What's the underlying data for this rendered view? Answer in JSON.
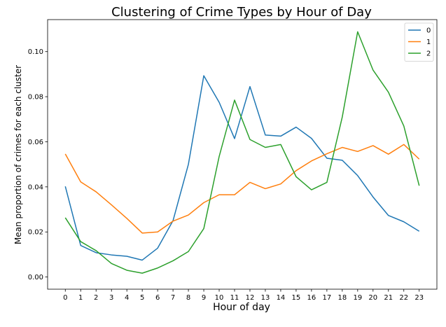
{
  "chart_data": {
    "type": "line",
    "title": "Clustering of Crime Types by Hour of Day",
    "xlabel": "Hour of day",
    "ylabel": "Mean proportion of crimes for each cluster",
    "x": [
      0,
      1,
      2,
      3,
      4,
      5,
      6,
      7,
      8,
      9,
      10,
      11,
      12,
      13,
      14,
      15,
      16,
      17,
      18,
      19,
      20,
      21,
      22,
      23
    ],
    "xlim": [
      -1.15,
      24.15
    ],
    "ylim": [
      -0.0054,
      0.1142
    ],
    "yticks": [
      0.0,
      0.02,
      0.04,
      0.06,
      0.08,
      0.1
    ],
    "ytick_labels": [
      "0.00",
      "0.02",
      "0.04",
      "0.06",
      "0.08",
      "0.10"
    ],
    "grid": false,
    "legend_position": "top-right",
    "series": [
      {
        "name": "0",
        "color": "#1f77b4",
        "values": [
          0.0402,
          0.014,
          0.0108,
          0.0098,
          0.0092,
          0.0075,
          0.0128,
          0.025,
          0.05,
          0.0893,
          0.0775,
          0.0614,
          0.0845,
          0.063,
          0.0625,
          0.0665,
          0.0615,
          0.0527,
          0.0518,
          0.045,
          0.0355,
          0.0273,
          0.0245,
          0.0203
        ]
      },
      {
        "name": "1",
        "color": "#ff7f0e",
        "values": [
          0.0546,
          0.0422,
          0.0378,
          0.032,
          0.026,
          0.0195,
          0.02,
          0.0248,
          0.0275,
          0.033,
          0.0365,
          0.0365,
          0.042,
          0.0392,
          0.0413,
          0.0472,
          0.0515,
          0.0547,
          0.0575,
          0.0557,
          0.0583,
          0.0545,
          0.0588,
          0.0523
        ]
      },
      {
        "name": "2",
        "color": "#2ca02c",
        "values": [
          0.0263,
          0.0157,
          0.0117,
          0.006,
          0.003,
          0.0017,
          0.004,
          0.0072,
          0.0113,
          0.0215,
          0.0535,
          0.0785,
          0.061,
          0.0575,
          0.0588,
          0.0445,
          0.0387,
          0.042,
          0.071,
          0.1088,
          0.0918,
          0.082,
          0.067,
          0.0405
        ]
      }
    ]
  }
}
